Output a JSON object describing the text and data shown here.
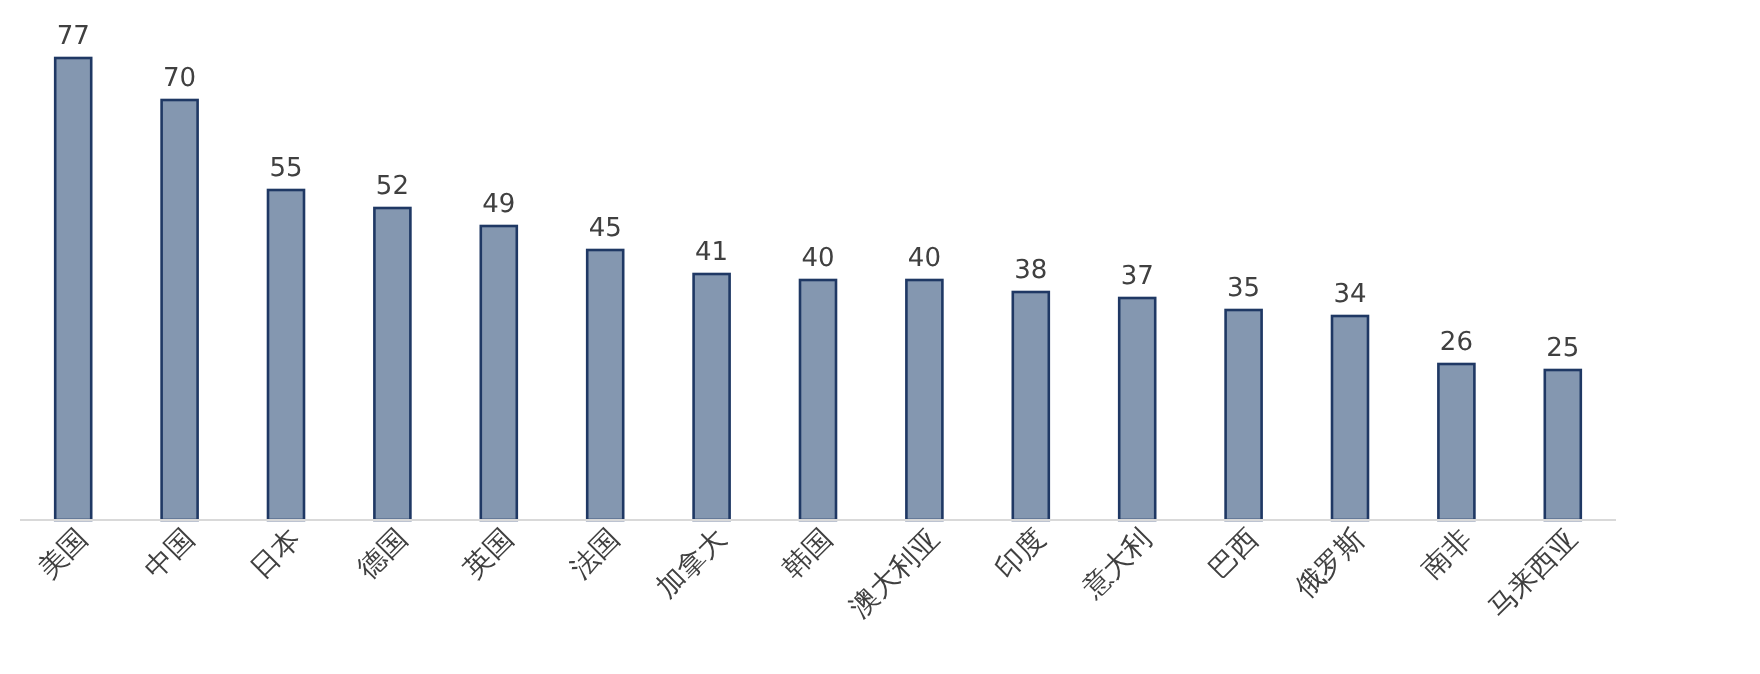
{
  "chart_data": {
    "type": "bar",
    "categories": [
      "美国",
      "中国",
      "日本",
      "德国",
      "英国",
      "法国",
      "加拿大",
      "韩国",
      "澳大利亚",
      "印度",
      "意大利",
      "巴西",
      "俄罗斯",
      "南非",
      "马来西亚"
    ],
    "series": [
      {
        "color": "#8497b0",
        "values": [
          77,
          70,
          55,
          52,
          49,
          45,
          41,
          40,
          40,
          38,
          37,
          35,
          34,
          26,
          25
        ]
      }
    ],
    "data_labels": true
  }
}
